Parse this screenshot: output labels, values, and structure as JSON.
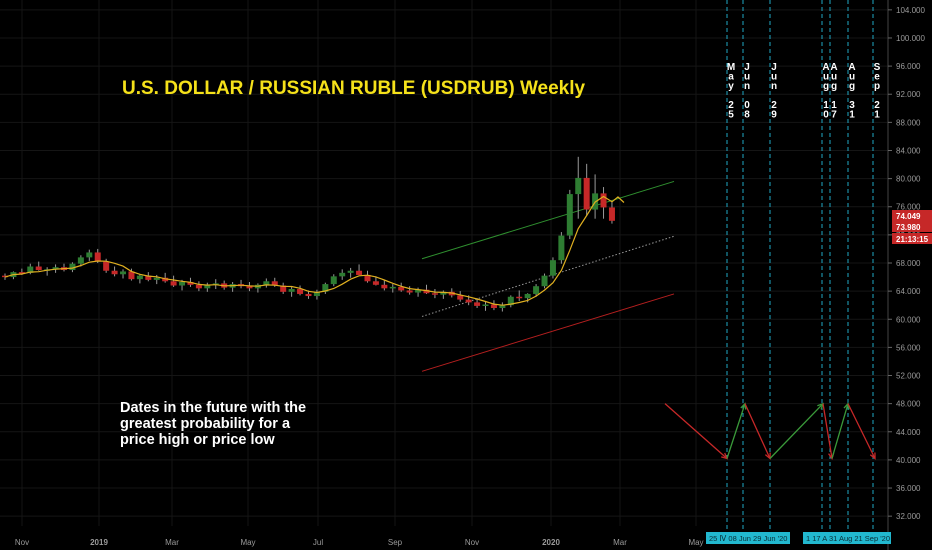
{
  "chart_data": {
    "type": "candlestick",
    "title": "U.S. DOLLAR / RUSSIAN RUBLE (USDRUB) Weekly",
    "annotation": [
      "Dates in the future with the",
      "greatest probability for a",
      "price high or price low"
    ],
    "ylim": [
      30.6,
      105.4
    ],
    "y_ticks": [
      "32.000",
      "36.000",
      "40.000",
      "44.000",
      "48.000",
      "52.000",
      "56.000",
      "60.000",
      "64.000",
      "68.000",
      "72.000",
      "76.000",
      "80.000",
      "84.000",
      "88.000",
      "92.000",
      "96.000",
      "100.000",
      "104.000"
    ],
    "x_ticks": [
      "Nov",
      "2019",
      "Mar",
      "May",
      "Jul",
      "Sep",
      "Nov",
      "2020",
      "Mar",
      "May"
    ],
    "price_labels": {
      "last": "74.049",
      "prev": "73.980",
      "timer": "21:13:15"
    },
    "colors": {
      "up": "#2e7d32",
      "down": "#c62828",
      "ma": "#e0b020",
      "cycle_line": "#1fa7c4",
      "trend_upper": "#2f8f2f",
      "trend_lower": "#b51f1f",
      "trend_mid": "#9a9a9a",
      "title": "#f5e11a"
    },
    "future_dates": [
      {
        "vertical": [
          "M",
          "a",
          "y",
          "",
          "2",
          "5"
        ]
      },
      {
        "vertical": [
          "J",
          "u",
          "n",
          "",
          "0",
          "8"
        ]
      },
      {
        "vertical": [
          "J",
          "u",
          "n",
          "",
          "2",
          "9"
        ]
      },
      {
        "vertical": [
          "A",
          "u",
          "g",
          "",
          "1",
          "0"
        ]
      },
      {
        "vertical": [
          "A",
          "u",
          "g",
          "",
          "1",
          "7"
        ]
      },
      {
        "vertical": [
          "A",
          "u",
          "g",
          "",
          "3",
          "1"
        ]
      },
      {
        "vertical": [
          "S",
          "e",
          "p",
          "",
          "2",
          "1"
        ]
      }
    ],
    "date_tags": [
      "25 Ⅳ 08 Jun  29 Jun '20",
      "1 17 A 31 Aug 21 Sep '20"
    ],
    "candles": [
      [
        66.2,
        66.5,
        65.6,
        66.0
      ],
      [
        66.0,
        66.8,
        65.7,
        66.7
      ],
      [
        66.7,
        67.2,
        66.3,
        66.6
      ],
      [
        66.6,
        67.9,
        66.4,
        67.5
      ],
      [
        67.5,
        68.2,
        66.9,
        67.0
      ],
      [
        67.0,
        67.4,
        66.2,
        67.1
      ],
      [
        67.1,
        67.8,
        66.6,
        67.4
      ],
      [
        67.4,
        67.9,
        66.8,
        67.0
      ],
      [
        67.0,
        68.1,
        66.7,
        67.9
      ],
      [
        67.9,
        69.1,
        67.5,
        68.8
      ],
      [
        68.8,
        69.9,
        68.3,
        69.5
      ],
      [
        69.5,
        70.0,
        68.0,
        68.2
      ],
      [
        68.2,
        68.6,
        66.6,
        66.9
      ],
      [
        66.9,
        67.5,
        66.1,
        66.4
      ],
      [
        66.4,
        67.1,
        65.8,
        66.8
      ],
      [
        66.8,
        67.2,
        65.5,
        65.7
      ],
      [
        65.7,
        66.4,
        65.1,
        66.2
      ],
      [
        66.2,
        66.7,
        65.4,
        65.6
      ],
      [
        65.6,
        66.3,
        65.0,
        65.9
      ],
      [
        65.9,
        66.6,
        65.2,
        65.4
      ],
      [
        65.4,
        66.2,
        64.6,
        64.8
      ],
      [
        64.8,
        65.6,
        64.1,
        65.3
      ],
      [
        65.3,
        65.9,
        64.6,
        64.9
      ],
      [
        64.9,
        65.4,
        64.0,
        64.4
      ],
      [
        64.4,
        65.2,
        63.9,
        64.9
      ],
      [
        64.9,
        65.7,
        64.3,
        65.1
      ],
      [
        65.1,
        65.5,
        64.2,
        64.5
      ],
      [
        64.5,
        65.3,
        63.9,
        65.0
      ],
      [
        65.0,
        65.6,
        64.4,
        64.7
      ],
      [
        64.7,
        65.3,
        64.0,
        64.4
      ],
      [
        64.4,
        65.1,
        63.8,
        64.9
      ],
      [
        64.9,
        65.8,
        64.5,
        65.4
      ],
      [
        65.4,
        65.9,
        64.6,
        64.8
      ],
      [
        64.8,
        65.2,
        63.6,
        63.9
      ],
      [
        63.9,
        64.6,
        63.2,
        64.3
      ],
      [
        64.3,
        64.8,
        63.4,
        63.6
      ],
      [
        63.6,
        64.1,
        62.9,
        63.3
      ],
      [
        63.3,
        64.2,
        62.8,
        63.9
      ],
      [
        63.9,
        65.2,
        63.6,
        65.0
      ],
      [
        65.0,
        66.4,
        64.7,
        66.1
      ],
      [
        66.1,
        67.1,
        65.6,
        66.6
      ],
      [
        66.6,
        67.3,
        65.9,
        66.9
      ],
      [
        66.9,
        67.8,
        66.3,
        66.3
      ],
      [
        66.3,
        66.9,
        65.2,
        65.4
      ],
      [
        65.4,
        66.1,
        64.8,
        64.9
      ],
      [
        64.9,
        65.5,
        64.1,
        64.4
      ],
      [
        64.4,
        65.0,
        63.8,
        64.6
      ],
      [
        64.6,
        65.2,
        63.9,
        64.1
      ],
      [
        64.1,
        64.7,
        63.5,
        63.8
      ],
      [
        63.8,
        64.5,
        63.2,
        64.2
      ],
      [
        64.2,
        64.9,
        63.6,
        63.7
      ],
      [
        63.7,
        64.3,
        63.0,
        63.5
      ],
      [
        63.5,
        64.1,
        62.9,
        63.9
      ],
      [
        63.9,
        64.4,
        63.1,
        63.4
      ],
      [
        63.4,
        64.0,
        62.5,
        62.8
      ],
      [
        62.8,
        63.4,
        62.0,
        62.4
      ],
      [
        62.4,
        63.0,
        61.6,
        61.9
      ],
      [
        61.9,
        62.6,
        61.2,
        62.1
      ],
      [
        62.1,
        62.7,
        61.3,
        61.6
      ],
      [
        61.6,
        62.4,
        61.1,
        62.0
      ],
      [
        62.0,
        63.4,
        61.7,
        63.2
      ],
      [
        63.2,
        64.1,
        62.6,
        63.0
      ],
      [
        63.0,
        63.7,
        62.4,
        63.6
      ],
      [
        63.6,
        65.0,
        63.2,
        64.7
      ],
      [
        64.7,
        66.5,
        64.4,
        66.2
      ],
      [
        66.2,
        68.8,
        65.8,
        68.4
      ],
      [
        68.4,
        72.4,
        67.9,
        71.9
      ],
      [
        71.9,
        78.4,
        71.4,
        77.8
      ],
      [
        77.8,
        83.1,
        74.3,
        80.1
      ],
      [
        80.1,
        82.1,
        74.7,
        75.6
      ],
      [
        75.6,
        80.6,
        74.3,
        77.9
      ],
      [
        77.9,
        78.8,
        74.3,
        75.9
      ],
      [
        75.9,
        76.8,
        73.6,
        74.0
      ]
    ]
  }
}
